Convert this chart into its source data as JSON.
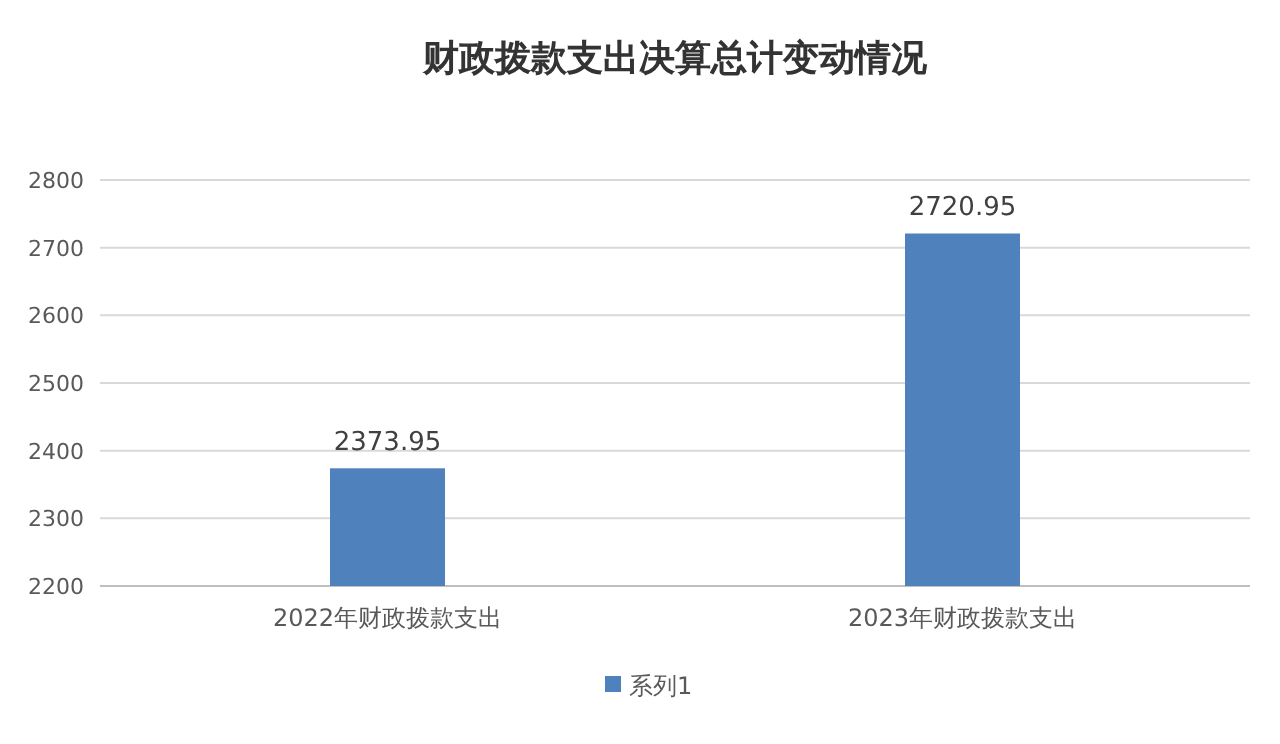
{
  "chart_data": {
    "type": "bar",
    "title": "财政拨款支出决算总计变动情况",
    "categories": [
      "2022年财政拨款支出",
      "2023年财政拨款支出"
    ],
    "series": [
      {
        "name": "系列1",
        "color": "#4f81bd",
        "values": [
          2373.95,
          2720.95
        ]
      }
    ],
    "ylim": [
      2200,
      2800
    ],
    "yticks": [
      2200,
      2300,
      2400,
      2500,
      2600,
      2700,
      2800
    ],
    "grid": "y",
    "legend": "bottom",
    "data_labels": true
  }
}
